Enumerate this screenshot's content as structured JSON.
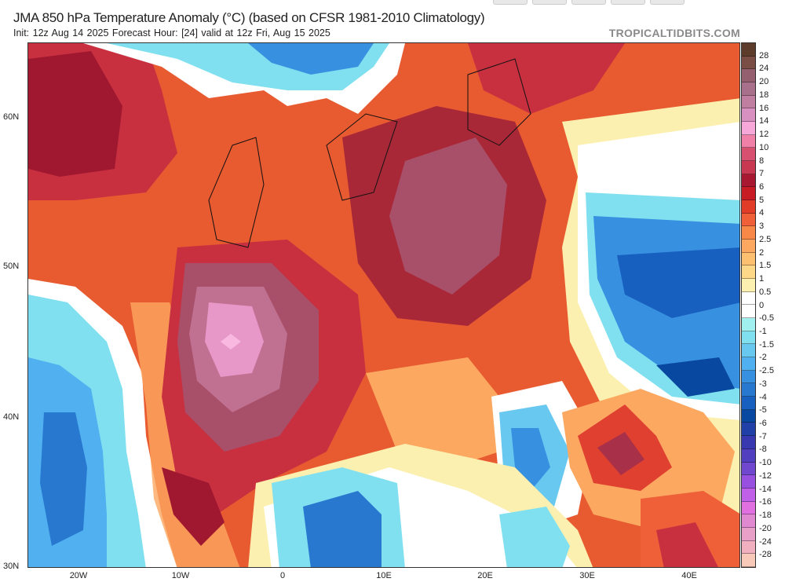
{
  "header": {
    "title": "JMA 850 hPa Temperature Anomaly (°C) (based on CFSR 1981-2010 Climatology)",
    "subtitle": "Init: 12z Aug 14 2025   Forecast Hour: [24]   valid at 12z Fri, Aug 15 2025",
    "brand": "TROPICALTIDBITS.COM"
  },
  "axes": {
    "latitudes": [
      "60N",
      "50N",
      "40N",
      "30N"
    ],
    "longitudes": [
      "20W",
      "10W",
      "0",
      "10E",
      "20E",
      "30E",
      "40E"
    ]
  },
  "colorbar": {
    "labels": [
      "28",
      "24",
      "20",
      "18",
      "16",
      "14",
      "12",
      "10",
      "8",
      "7",
      "6",
      "5",
      "4",
      "3",
      "2.5",
      "2",
      "1.5",
      "1",
      "0.5",
      "0",
      "-0.5",
      "-1",
      "-1.5",
      "-2",
      "-2.5",
      "-3",
      "-4",
      "-5",
      "-6",
      "-7",
      "-8",
      "-10",
      "-12",
      "-14",
      "-16",
      "-18",
      "-20",
      "-24",
      "-28"
    ],
    "colors": [
      "#5e3c2c",
      "#7a4e44",
      "#946070",
      "#a8708a",
      "#c07ea0",
      "#d890c0",
      "#f8a8d8",
      "#f080a8",
      "#d85070",
      "#c83850",
      "#a81830",
      "#c81c24",
      "#e03c28",
      "#f06038",
      "#f88848",
      "#fca860",
      "#fcc070",
      "#fcd888",
      "#fcf0b0",
      "#ffffff",
      "#ffffff",
      "#a0f0f0",
      "#80e0f0",
      "#68c8f0",
      "#50b0f0",
      "#3890e0",
      "#2878d0",
      "#1860c0",
      "#0848a0",
      "#2040a8",
      "#3838b0",
      "#5040c0",
      "#7048d0",
      "#9850e0",
      "#c060e8",
      "#e070e0",
      "#e088d0",
      "#e8a0c8",
      "#f0b0c0",
      "#f8c8b8"
    ]
  }
}
